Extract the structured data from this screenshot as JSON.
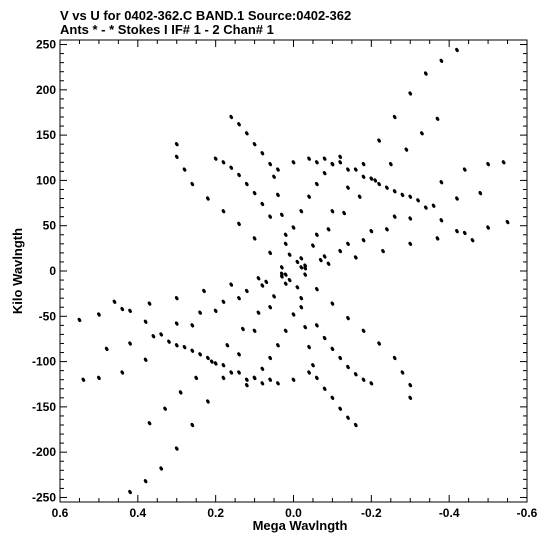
{
  "chart_data": {
    "type": "scatter",
    "title_line1": "V vs U for 0402-362.C BAND.1   Source:0402-362",
    "title_line2": "Ants * - *    Stokes I  IF# 1 - 2  Chan# 1",
    "xlabel": "Mega Wavlngth",
    "ylabel": "Kilo Wavlngth",
    "xlim": [
      0.6,
      -0.6
    ],
    "ylim": [
      -255,
      255
    ],
    "x_ticks": [
      0.6,
      0.4,
      0.2,
      0.0,
      -0.2,
      -0.4,
      -0.6
    ],
    "x_tick_labels": [
      "0.6",
      "0.4",
      "0.2",
      "0.0",
      "-0.2",
      "-0.4",
      "-0.6"
    ],
    "y_ticks": [
      250,
      200,
      150,
      100,
      50,
      0,
      -50,
      -100,
      -150,
      -200,
      -250
    ],
    "y_tick_labels": [
      "250",
      "200",
      "150",
      "100",
      "50",
      "0",
      "-50",
      "-100",
      "-150",
      "-200",
      "-250"
    ],
    "grid": false,
    "point_color": "#000000",
    "note": "uv-coverage tracks: each track is sampled symmetrically (u,v) and (-u,-v)",
    "tracks": [
      {
        "name": "",
        "points": [
          [
            -0.02,
            14
          ],
          [
            -0.06,
            40
          ],
          [
            -0.1,
            66
          ],
          [
            -0.14,
            92
          ],
          [
            -0.18,
            118
          ],
          [
            -0.22,
            144
          ],
          [
            -0.26,
            170
          ],
          [
            -0.3,
            196
          ],
          [
            -0.34,
            218
          ],
          [
            -0.38,
            232
          ],
          [
            -0.42,
            244
          ]
        ]
      },
      {
        "name": "",
        "points": [
          [
            -0.03,
            6
          ],
          [
            -0.08,
            16
          ],
          [
            -0.14,
            30
          ],
          [
            -0.2,
            44
          ],
          [
            -0.26,
            60
          ],
          [
            -0.32,
            78
          ],
          [
            -0.38,
            98
          ],
          [
            -0.44,
            112
          ],
          [
            -0.5,
            118
          ],
          [
            -0.54,
            120
          ]
        ]
      },
      {
        "name": "",
        "points": [
          [
            -0.03,
            3
          ],
          [
            -0.09,
            8
          ],
          [
            -0.16,
            15
          ],
          [
            -0.23,
            22
          ],
          [
            -0.3,
            30
          ],
          [
            -0.37,
            36
          ],
          [
            -0.44,
            42
          ],
          [
            -0.5,
            48
          ],
          [
            -0.55,
            54
          ],
          [
            -0.61,
            48
          ]
        ]
      },
      {
        "name": "",
        "points": [
          [
            0.01,
            18
          ],
          [
            0.02,
            40
          ],
          [
            0.03,
            62
          ],
          [
            0.04,
            84
          ],
          [
            0.05,
            104
          ],
          [
            0.06,
            118
          ],
          [
            0.08,
            130
          ],
          [
            0.1,
            140
          ],
          [
            0.12,
            152
          ],
          [
            0.14,
            162
          ],
          [
            0.16,
            170
          ]
        ]
      },
      {
        "name": "",
        "points": [
          [
            -0.01,
            10
          ],
          [
            -0.05,
            28
          ],
          [
            -0.09,
            46
          ],
          [
            -0.13,
            64
          ],
          [
            -0.17,
            82
          ],
          [
            -0.21,
            100
          ],
          [
            -0.25,
            118
          ],
          [
            -0.29,
            134
          ],
          [
            -0.33,
            152
          ],
          [
            -0.37,
            168
          ]
        ]
      },
      {
        "name": "",
        "points": [
          [
            -0.02,
            4
          ],
          [
            -0.07,
            12
          ],
          [
            -0.12,
            22
          ],
          [
            -0.18,
            34
          ],
          [
            -0.24,
            46
          ],
          [
            -0.3,
            58
          ],
          [
            -0.36,
            72
          ],
          [
            -0.42,
            80
          ],
          [
            -0.48,
            86
          ]
        ]
      },
      {
        "name": "",
        "points": [
          [
            0.03,
            4
          ],
          [
            0.06,
            20
          ],
          [
            0.1,
            36
          ],
          [
            0.14,
            52
          ],
          [
            0.18,
            66
          ],
          [
            0.22,
            80
          ],
          [
            0.26,
            96
          ],
          [
            0.28,
            112
          ],
          [
            0.3,
            126
          ],
          [
            0.3,
            140
          ]
        ]
      },
      {
        "name": "",
        "points": [
          [
            0.06,
            60
          ],
          [
            0.08,
            74
          ],
          [
            0.1,
            86
          ],
          [
            0.12,
            96
          ],
          [
            0.14,
            106
          ],
          [
            0.16,
            114
          ],
          [
            0.18,
            120
          ],
          [
            0.2,
            124
          ]
        ]
      },
      {
        "name": "",
        "points": [
          [
            -0.06,
            120
          ],
          [
            -0.1,
            118
          ],
          [
            -0.14,
            112
          ],
          [
            -0.18,
            104
          ],
          [
            -0.22,
            96
          ],
          [
            -0.26,
            88
          ],
          [
            -0.3,
            82
          ],
          [
            -0.34,
            70
          ],
          [
            -0.38,
            56
          ],
          [
            -0.42,
            44
          ],
          [
            -0.46,
            34
          ]
        ]
      },
      {
        "name": "",
        "points": [
          [
            0.04,
            112
          ],
          [
            0.0,
            120
          ],
          [
            -0.04,
            124
          ],
          [
            -0.08,
            124
          ],
          [
            -0.12,
            120
          ],
          [
            -0.16,
            112
          ],
          [
            -0.2,
            102
          ],
          [
            -0.24,
            92
          ],
          [
            -0.28,
            84
          ]
        ]
      },
      {
        "name": "",
        "points": [
          [
            0.02,
            30
          ],
          [
            0.0,
            48
          ],
          [
            -0.02,
            66
          ],
          [
            -0.04,
            82
          ],
          [
            -0.06,
            96
          ],
          [
            -0.08,
            108
          ],
          [
            -0.1,
            118
          ],
          [
            -0.12,
            126
          ]
        ]
      }
    ]
  }
}
